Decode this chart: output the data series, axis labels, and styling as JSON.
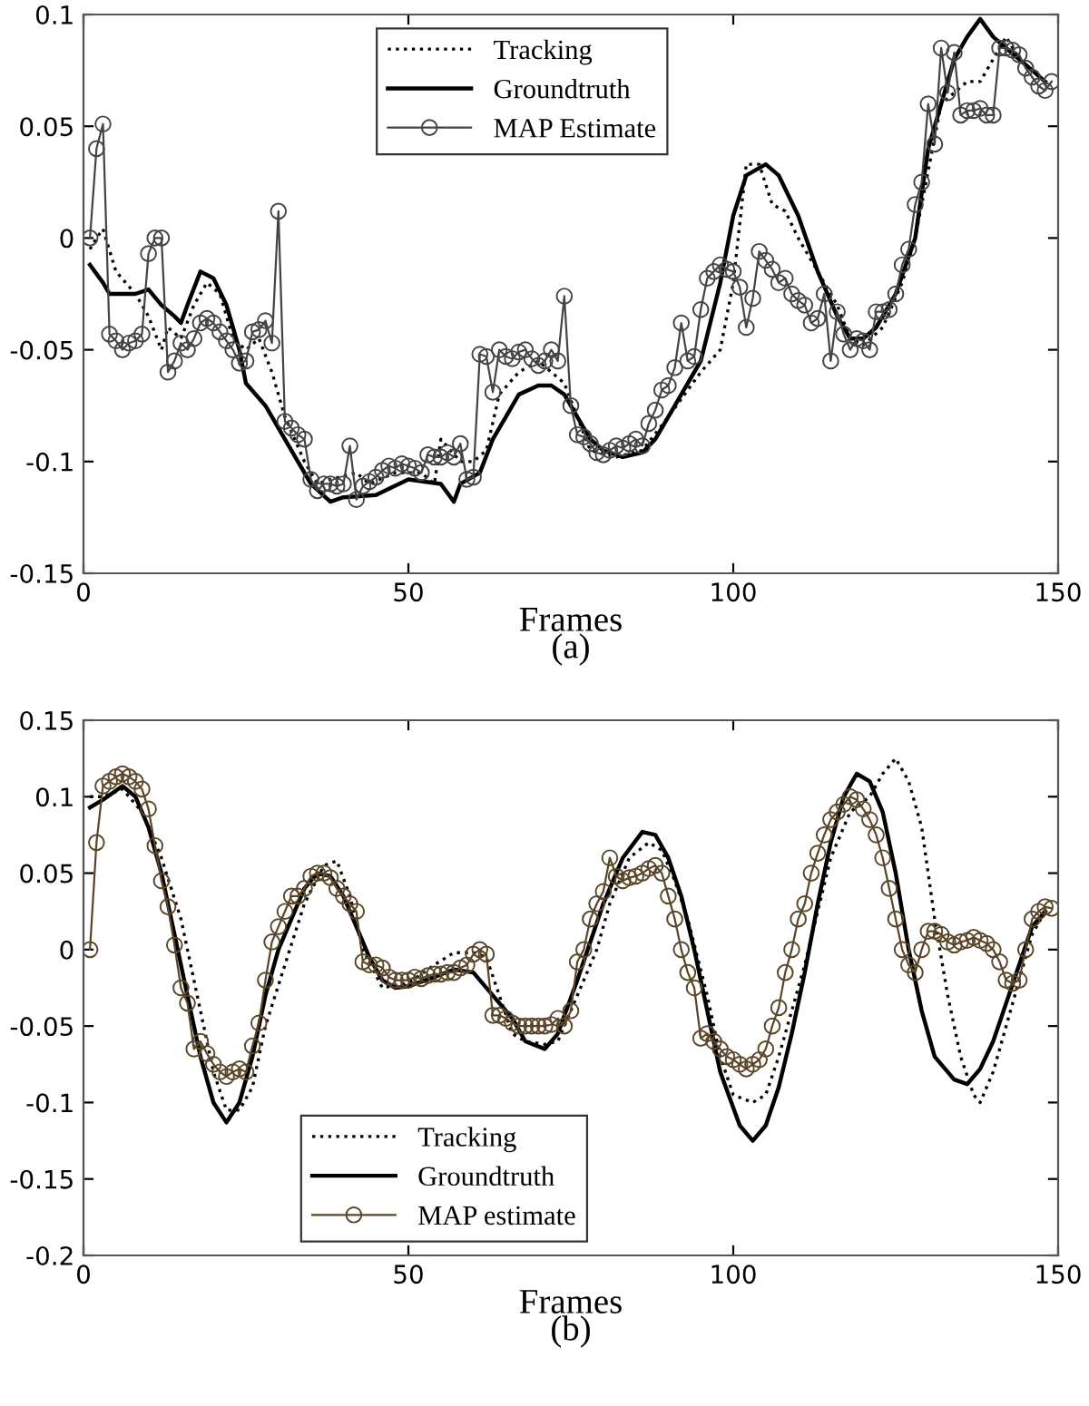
{
  "chart_data": [
    {
      "type": "line",
      "xlabel": "Frames",
      "annotations": [
        "(a)"
      ],
      "xlim": [
        0,
        150
      ],
      "xticks": [
        0,
        50,
        100,
        150
      ],
      "ylim": [
        -0.15,
        0.1
      ],
      "yticks": [
        -0.15,
        -0.1,
        -0.05,
        0,
        0.05,
        0.1
      ],
      "grid": false,
      "legend": "top",
      "series": [
        {
          "name": "Tracking",
          "color": "#000000",
          "line_style": "dotted",
          "marker": "none",
          "x": [
            1,
            2,
            3,
            5,
            8,
            10,
            12,
            13,
            15,
            17,
            19,
            21,
            23,
            25,
            27,
            29,
            31,
            34,
            36,
            38,
            42,
            44,
            48,
            52,
            54,
            55,
            58,
            60,
            62,
            64,
            67,
            70,
            72,
            74,
            76,
            78,
            82,
            86,
            90,
            95,
            98,
            100,
            102,
            104,
            106,
            108,
            110,
            112,
            114,
            116,
            118,
            120,
            123,
            126,
            128,
            130,
            132,
            134,
            136,
            138,
            140,
            142,
            144,
            146,
            148
          ],
          "values": [
            -0.005,
            0.0,
            0.004,
            -0.015,
            -0.025,
            -0.035,
            -0.05,
            -0.04,
            -0.045,
            -0.03,
            -0.02,
            -0.025,
            -0.045,
            -0.05,
            -0.045,
            -0.06,
            -0.08,
            -0.1,
            -0.11,
            -0.108,
            -0.105,
            -0.11,
            -0.105,
            -0.105,
            -0.11,
            -0.09,
            -0.1,
            -0.1,
            -0.095,
            -0.07,
            -0.06,
            -0.055,
            -0.06,
            -0.065,
            -0.08,
            -0.095,
            -0.098,
            -0.095,
            -0.08,
            -0.06,
            -0.05,
            -0.02,
            0.033,
            0.033,
            0.015,
            0.012,
            0.0,
            -0.01,
            -0.02,
            -0.03,
            -0.045,
            -0.048,
            -0.04,
            -0.02,
            0.0,
            0.03,
            0.06,
            0.065,
            0.07,
            0.07,
            0.08,
            0.09,
            0.08,
            0.075,
            0.07
          ]
        },
        {
          "name": "Groundtruth",
          "color": "#000000",
          "line_style": "solid",
          "marker": "none",
          "x": [
            1,
            3,
            4,
            8,
            10,
            12,
            14,
            15,
            16,
            18,
            20,
            22,
            24,
            25,
            28,
            30,
            33,
            35,
            38,
            40,
            45,
            50,
            55,
            57,
            58,
            61,
            63,
            65,
            67,
            70,
            72,
            74,
            76,
            78,
            80,
            83,
            86,
            88,
            90,
            92,
            95,
            98,
            100,
            102,
            105,
            107,
            110,
            113,
            116,
            118,
            120,
            122,
            125,
            128,
            130,
            132,
            134,
            136,
            138,
            140,
            142,
            144,
            146,
            148
          ],
          "values": [
            -0.012,
            -0.02,
            -0.025,
            -0.025,
            -0.023,
            -0.03,
            -0.035,
            -0.038,
            -0.03,
            -0.015,
            -0.018,
            -0.03,
            -0.05,
            -0.065,
            -0.075,
            -0.085,
            -0.1,
            -0.11,
            -0.118,
            -0.116,
            -0.115,
            -0.108,
            -0.11,
            -0.118,
            -0.11,
            -0.105,
            -0.09,
            -0.08,
            -0.07,
            -0.066,
            -0.066,
            -0.07,
            -0.08,
            -0.09,
            -0.095,
            -0.098,
            -0.096,
            -0.09,
            -0.08,
            -0.07,
            -0.055,
            -0.02,
            0.01,
            0.028,
            0.033,
            0.028,
            0.01,
            -0.015,
            -0.035,
            -0.045,
            -0.045,
            -0.04,
            -0.025,
            0.0,
            0.04,
            0.06,
            0.08,
            0.09,
            0.098,
            0.09,
            0.085,
            0.08,
            0.075,
            0.07
          ]
        },
        {
          "name": "MAP Estimate",
          "color": "#444444",
          "line_style": "solid",
          "marker": "circle",
          "x": [
            1,
            2,
            3,
            4,
            5,
            6,
            7,
            8,
            9,
            10,
            11,
            12,
            13,
            14,
            15,
            16,
            17,
            18,
            19,
            20,
            21,
            22,
            23,
            24,
            25,
            26,
            27,
            28,
            29,
            30,
            31,
            32,
            33,
            34,
            35,
            36,
            37,
            38,
            39,
            40,
            41,
            42,
            43,
            44,
            45,
            46,
            47,
            48,
            49,
            50,
            51,
            52,
            53,
            54,
            55,
            56,
            57,
            58,
            59,
            60,
            61,
            62,
            63,
            64,
            65,
            66,
            67,
            68,
            69,
            70,
            71,
            72,
            73,
            74,
            75,
            76,
            77,
            78,
            79,
            80,
            81,
            82,
            83,
            84,
            85,
            86,
            87,
            88,
            89,
            90,
            91,
            92,
            93,
            94,
            95,
            96,
            97,
            98,
            99,
            100,
            101,
            102,
            103,
            104,
            105,
            106,
            107,
            108,
            109,
            110,
            111,
            112,
            113,
            114,
            115,
            116,
            117,
            118,
            119,
            120,
            121,
            122,
            123,
            124,
            125,
            126,
            127,
            128,
            129,
            130,
            131,
            132,
            133,
            134,
            135,
            136,
            137,
            138,
            139,
            140,
            141,
            142,
            143,
            144,
            145,
            146,
            147,
            148,
            149
          ],
          "values": [
            0.0,
            0.04,
            0.051,
            -0.043,
            -0.046,
            -0.05,
            -0.047,
            -0.046,
            -0.043,
            -0.007,
            0.0,
            0.0,
            -0.06,
            -0.055,
            -0.047,
            -0.05,
            -0.045,
            -0.038,
            -0.036,
            -0.038,
            -0.042,
            -0.046,
            -0.05,
            -0.056,
            -0.055,
            -0.042,
            -0.041,
            -0.037,
            -0.047,
            0.012,
            -0.082,
            -0.085,
            -0.088,
            -0.09,
            -0.108,
            -0.113,
            -0.11,
            -0.11,
            -0.111,
            -0.11,
            -0.093,
            -0.117,
            -0.111,
            -0.109,
            -0.107,
            -0.104,
            -0.102,
            -0.103,
            -0.101,
            -0.102,
            -0.103,
            -0.105,
            -0.097,
            -0.098,
            -0.098,
            -0.096,
            -0.098,
            -0.092,
            -0.108,
            -0.107,
            -0.052,
            -0.053,
            -0.069,
            -0.05,
            -0.053,
            -0.054,
            -0.051,
            -0.05,
            -0.054,
            -0.057,
            -0.055,
            -0.05,
            -0.055,
            -0.026,
            -0.075,
            -0.088,
            -0.089,
            -0.092,
            -0.096,
            -0.097,
            -0.095,
            -0.093,
            -0.094,
            -0.092,
            -0.09,
            -0.093,
            -0.083,
            -0.077,
            -0.068,
            -0.066,
            -0.058,
            -0.038,
            -0.055,
            -0.053,
            -0.032,
            -0.018,
            -0.015,
            -0.012,
            -0.014,
            -0.015,
            -0.022,
            -0.04,
            -0.027,
            -0.006,
            -0.01,
            -0.014,
            -0.02,
            -0.018,
            -0.025,
            -0.028,
            -0.03,
            -0.038,
            -0.036,
            -0.025,
            -0.055,
            -0.033,
            -0.043,
            -0.05,
            -0.045,
            -0.046,
            -0.05,
            -0.033,
            -0.033,
            -0.032,
            -0.025,
            -0.012,
            -0.005,
            0.015,
            0.025,
            0.06,
            0.042,
            0.085,
            0.065,
            0.083,
            0.055,
            0.057,
            0.057,
            0.058,
            0.055,
            0.055,
            0.085,
            0.085,
            0.084,
            0.082,
            0.076,
            0.072,
            0.068,
            0.066,
            0.07
          ]
        }
      ]
    },
    {
      "type": "line",
      "xlabel": "Frames",
      "annotations": [
        "(b)"
      ],
      "xlim": [
        0,
        150
      ],
      "xticks": [
        0,
        50,
        100,
        150
      ],
      "ylim": [
        -0.2,
        0.15
      ],
      "yticks": [
        -0.2,
        -0.15,
        -0.1,
        -0.05,
        0,
        0.05,
        0.1,
        0.15
      ],
      "grid": false,
      "legend": "bottom",
      "series": [
        {
          "name": "Tracking",
          "color": "#000000",
          "line_style": "dotted",
          "marker": "none",
          "x": [
            1,
            3,
            6,
            9,
            12,
            15,
            18,
            20,
            22,
            24,
            26,
            28,
            31,
            34,
            37,
            39,
            41,
            43,
            46,
            50,
            54,
            57,
            60,
            62,
            64,
            66,
            68,
            71,
            73,
            76,
            79,
            81,
            84,
            87,
            89,
            91,
            93,
            96,
            98,
            100,
            103,
            105,
            107,
            109,
            111,
            113,
            115,
            118,
            121,
            123,
            125,
            127,
            129,
            131,
            133,
            135,
            137,
            138,
            140,
            142,
            144,
            146,
            148
          ],
          "values": [
            0.1,
            0.1,
            0.105,
            0.09,
            0.06,
            0.02,
            -0.04,
            -0.08,
            -0.105,
            -0.105,
            -0.09,
            -0.05,
            -0.01,
            0.03,
            0.055,
            0.058,
            0.035,
            0.0,
            -0.025,
            -0.022,
            -0.01,
            -0.002,
            -0.002,
            -0.005,
            -0.03,
            -0.055,
            -0.06,
            -0.062,
            -0.06,
            -0.03,
            0.0,
            0.03,
            0.06,
            0.07,
            0.065,
            0.045,
            0.02,
            -0.03,
            -0.07,
            -0.095,
            -0.1,
            -0.095,
            -0.07,
            -0.04,
            -0.01,
            0.025,
            0.06,
            0.09,
            0.1,
            0.115,
            0.125,
            0.11,
            0.08,
            0.02,
            -0.03,
            -0.07,
            -0.095,
            -0.1,
            -0.08,
            -0.05,
            -0.02,
            0.01,
            0.025
          ]
        },
        {
          "name": "Groundtruth",
          "color": "#000000",
          "line_style": "solid",
          "marker": "none",
          "x": [
            1,
            3,
            6,
            8,
            10,
            12,
            14,
            16,
            18,
            20,
            22,
            24,
            26,
            28,
            30,
            32,
            34,
            36,
            38,
            40,
            42,
            44,
            46,
            48,
            50,
            54,
            57,
            60,
            63,
            66,
            68,
            71,
            73,
            76,
            78,
            80,
            83,
            86,
            88,
            90,
            92,
            94,
            96,
            98,
            101,
            103,
            105,
            107,
            109,
            111,
            113,
            115,
            117,
            119,
            121,
            123,
            125,
            127,
            129,
            131,
            134,
            136,
            138,
            140,
            142,
            144,
            146,
            148
          ],
          "values": [
            0.093,
            0.098,
            0.107,
            0.1,
            0.08,
            0.05,
            0.01,
            -0.03,
            -0.07,
            -0.1,
            -0.113,
            -0.1,
            -0.07,
            -0.03,
            0.0,
            0.02,
            0.04,
            0.05,
            0.048,
            0.035,
            0.015,
            -0.005,
            -0.02,
            -0.025,
            -0.024,
            -0.018,
            -0.013,
            -0.015,
            -0.03,
            -0.045,
            -0.06,
            -0.065,
            -0.055,
            -0.02,
            0.005,
            0.03,
            0.06,
            0.077,
            0.075,
            0.06,
            0.035,
            0.0,
            -0.04,
            -0.08,
            -0.115,
            -0.125,
            -0.115,
            -0.09,
            -0.055,
            -0.015,
            0.03,
            0.07,
            0.1,
            0.115,
            0.11,
            0.09,
            0.05,
            0.0,
            -0.04,
            -0.07,
            -0.085,
            -0.088,
            -0.078,
            -0.06,
            -0.035,
            -0.01,
            0.015,
            0.025
          ]
        },
        {
          "name": "MAP estimate",
          "color": "#5a4628",
          "line_style": "solid",
          "marker": "circle",
          "x": [
            1,
            2,
            3,
            4,
            5,
            6,
            7,
            8,
            9,
            10,
            11,
            12,
            13,
            14,
            15,
            16,
            17,
            18,
            19,
            20,
            21,
            22,
            23,
            24,
            25,
            26,
            27,
            28,
            29,
            30,
            31,
            32,
            33,
            34,
            35,
            36,
            37,
            38,
            39,
            40,
            41,
            42,
            43,
            44,
            45,
            46,
            47,
            48,
            49,
            50,
            51,
            52,
            53,
            54,
            55,
            56,
            57,
            58,
            59,
            60,
            61,
            62,
            63,
            64,
            65,
            66,
            67,
            68,
            69,
            70,
            71,
            72,
            73,
            74,
            75,
            76,
            77,
            78,
            79,
            80,
            81,
            82,
            83,
            84,
            85,
            86,
            87,
            88,
            89,
            90,
            91,
            92,
            93,
            94,
            95,
            96,
            97,
            98,
            99,
            100,
            101,
            102,
            103,
            104,
            105,
            106,
            107,
            108,
            109,
            110,
            111,
            112,
            113,
            114,
            115,
            116,
            117,
            118,
            119,
            120,
            121,
            122,
            123,
            124,
            125,
            126,
            127,
            128,
            129,
            130,
            131,
            132,
            133,
            134,
            135,
            136,
            137,
            138,
            139,
            140,
            141,
            142,
            143,
            144,
            145,
            146,
            147,
            148,
            149
          ],
          "values": [
            0.0,
            0.07,
            0.107,
            0.11,
            0.113,
            0.115,
            0.113,
            0.11,
            0.105,
            0.092,
            0.068,
            0.045,
            0.028,
            0.003,
            -0.025,
            -0.035,
            -0.065,
            -0.06,
            -0.068,
            -0.075,
            -0.08,
            -0.083,
            -0.08,
            -0.078,
            -0.08,
            -0.063,
            -0.048,
            -0.02,
            0.005,
            0.015,
            0.025,
            0.035,
            0.035,
            0.04,
            0.048,
            0.05,
            0.05,
            0.047,
            0.04,
            0.035,
            0.03,
            0.025,
            -0.008,
            -0.01,
            -0.01,
            -0.012,
            -0.018,
            -0.02,
            -0.02,
            -0.02,
            -0.018,
            -0.019,
            -0.017,
            -0.016,
            -0.016,
            -0.015,
            -0.015,
            -0.012,
            -0.01,
            -0.003,
            0.0,
            -0.003,
            -0.043,
            -0.043,
            -0.045,
            -0.048,
            -0.05,
            -0.05,
            -0.05,
            -0.05,
            -0.05,
            -0.049,
            -0.045,
            -0.05,
            -0.04,
            -0.008,
            0.0,
            0.02,
            0.03,
            0.038,
            0.06,
            0.048,
            0.045,
            0.047,
            0.048,
            0.05,
            0.053,
            0.055,
            0.05,
            0.035,
            0.02,
            0.0,
            -0.015,
            -0.025,
            -0.058,
            -0.055,
            -0.06,
            -0.065,
            -0.07,
            -0.072,
            -0.075,
            -0.078,
            -0.075,
            -0.072,
            -0.065,
            -0.05,
            -0.038,
            -0.015,
            0.0,
            0.02,
            0.03,
            0.05,
            0.063,
            0.075,
            0.085,
            0.09,
            0.095,
            0.1,
            0.098,
            0.092,
            0.085,
            0.075,
            0.06,
            0.04,
            0.02,
            0.0,
            -0.01,
            -0.015,
            0.0,
            0.012,
            0.012,
            0.01,
            0.005,
            0.003,
            0.005,
            0.006,
            0.008,
            0.006,
            0.004,
            0.0,
            -0.008,
            -0.02,
            -0.022,
            -0.02,
            0.0,
            0.02,
            0.025,
            0.028,
            0.027
          ]
        }
      ]
    }
  ]
}
